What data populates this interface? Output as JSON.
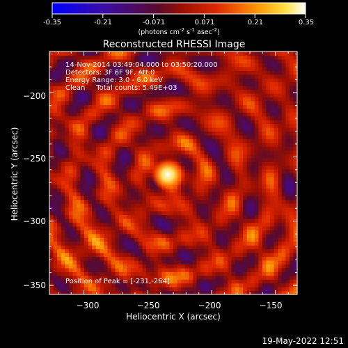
{
  "colorbar": {
    "ticks": [
      "-0.35",
      "-0.21",
      "-0.071",
      "0.071",
      "0.21",
      "0.35"
    ],
    "unit_main": "(photons cm",
    "unit_exp1": "-2",
    "unit_s": " s",
    "unit_exp2": "-1",
    "unit_asec": " asec",
    "unit_exp3": "-2",
    "unit_close": ")"
  },
  "chart_data": {
    "type": "heatmap",
    "title": "Reconstructed RHESSI Image",
    "xlabel": "Heliocentric X (arcsec)",
    "ylabel": "Heliocentric Y (arcsec)",
    "xlim": [
      -327,
      -133
    ],
    "ylim": [
      -357,
      -168
    ],
    "x_ticks": [
      -300,
      -250,
      -200,
      -150
    ],
    "y_ticks": [
      -350,
      -300,
      -250,
      -200
    ],
    "x_tick_labels": [
      "−300",
      "−250",
      "−200",
      "−150"
    ],
    "y_tick_labels": [
      "−350",
      "−300",
      "−250",
      "−200"
    ],
    "color_range": [
      -0.35,
      0.35
    ],
    "peak": [
      -231,
      -264
    ],
    "annotations": [
      "14-Nov-2014 03:49:04.000 to 03:50:20.000",
      "Detectors: 3F 6F 9F, Att 0",
      "Energy Range: 3.0 - 6.0 keV",
      "Clean     Total counts: 5.49E+03"
    ],
    "peak_label": "Position of Peak = [-231,-264]"
  },
  "footer": {
    "timestamp": "19-May-2022 12:51"
  }
}
